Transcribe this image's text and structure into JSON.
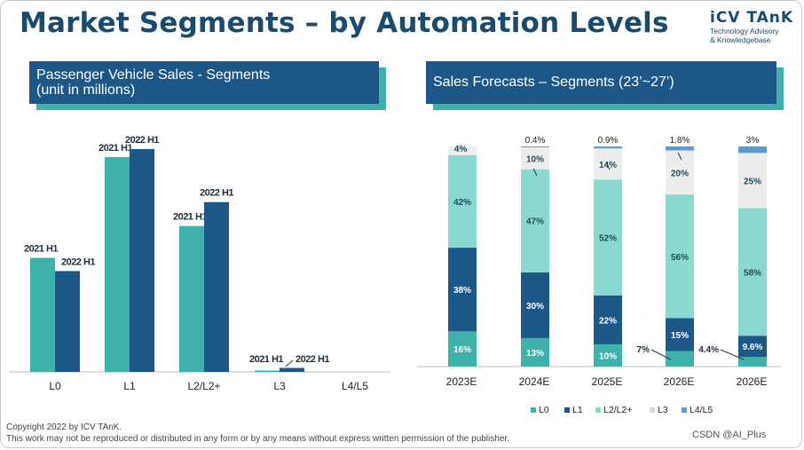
{
  "title": "Market Segments – by Automation Levels",
  "logo": {
    "name": "iCV TAnK",
    "line1": "Technology Advisory",
    "line2": "& Knowledgebase"
  },
  "footer": {
    "copyright": "Copyright  2022 by ICV TAnK.",
    "notice": "This work may not be reproduced or distributed in any form or by any means without express written permission of the publisher.",
    "watermark": "CSDN @AI_Plus"
  },
  "colors": {
    "teal": "#3fb1ab",
    "navy": "#1c5788",
    "light_teal": "#8ad9d1",
    "light_grey": "#ededed",
    "blue": "#5b9bd5"
  },
  "chart_data": [
    {
      "type": "bar",
      "title": "Passenger Vehicle Sales - Segments",
      "subtitle": "(unit in millions)",
      "categories": [
        "L0",
        "L1",
        "L2/L2+",
        "L3",
        "L4/L5"
      ],
      "series": [
        {
          "name": "2021 H1",
          "values": [
            4.3,
            8.1,
            5.5,
            0.05,
            0
          ],
          "labels": [
            "2021 H1",
            "2021 H1",
            "2021 H1",
            "2021 H1",
            ""
          ]
        },
        {
          "name": "2022 H1",
          "values": [
            3.8,
            8.4,
            6.4,
            0.15,
            0
          ],
          "labels": [
            "2022 H1",
            "2022 H1",
            "2022 H1",
            "2022 H1",
            ""
          ]
        }
      ],
      "ylim": [
        0,
        9
      ],
      "grid": false,
      "legend": "none"
    },
    {
      "type": "bar",
      "stacked": true,
      "title": "Sales Forecasts – Segments (23’~27’)",
      "categories": [
        "2023E",
        "2024E",
        "2025E",
        "2026E",
        "2026E"
      ],
      "series": [
        {
          "name": "L0",
          "values": [
            16,
            13,
            10,
            7,
            4.4
          ],
          "labels": [
            "16%",
            "13%",
            "10%",
            "7%",
            "4.4%"
          ]
        },
        {
          "name": "L1",
          "values": [
            38,
            30,
            22,
            15,
            9.6
          ],
          "labels": [
            "38%",
            "30%",
            "22%",
            "15%",
            "9.6%"
          ]
        },
        {
          "name": "L2/L2+",
          "values": [
            42,
            47,
            52,
            56,
            58
          ],
          "labels": [
            "42%",
            "47%",
            "52%",
            "56%",
            "58%"
          ]
        },
        {
          "name": "L3",
          "values": [
            4,
            10,
            14,
            20,
            25
          ],
          "labels": [
            "4%",
            "10%",
            "14%",
            "20%",
            "25%"
          ]
        },
        {
          "name": "L4/L5",
          "values": [
            0,
            0.4,
            0.9,
            1.8,
            3
          ],
          "labels": [
            "",
            "0.4%",
            "0.9%",
            "1.8%",
            "3%"
          ]
        }
      ],
      "ylim": [
        0,
        100
      ],
      "grid": false,
      "legend": "bottom"
    }
  ]
}
